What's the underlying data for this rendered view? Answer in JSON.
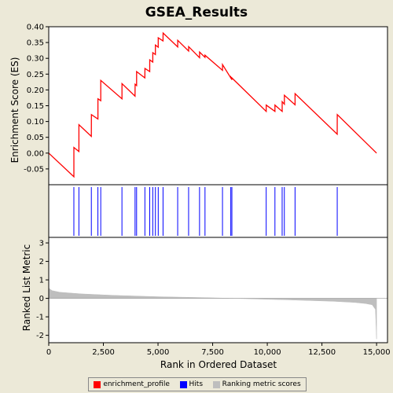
{
  "chart_data": {
    "type": "line",
    "title": "GSEA_Results",
    "xlabel": "Rank in Ordered Dataset",
    "es_ylabel": "Enrichment Score (ES)",
    "rank_ylabel": "Ranked List Metric",
    "xlim": [
      0,
      15500
    ],
    "es_ylim": [
      -0.1,
      0.4
    ],
    "rank_ylim": [
      -2.4,
      3.3
    ],
    "x_ticks": [
      0,
      2500,
      5000,
      7500,
      10000,
      12500,
      15000
    ],
    "x_tick_labels": [
      "0",
      "2,500",
      "5,000",
      "7,500",
      "10,000",
      "12,500",
      "15,000"
    ],
    "es_ticks": [
      -0.05,
      0,
      0.05,
      0.1,
      0.15,
      0.2,
      0.25,
      0.3,
      0.35,
      0.4
    ],
    "es_tick_labels": [
      "-0.05",
      "0.00",
      "0.05",
      "0.10",
      "0.15",
      "0.20",
      "0.25",
      "0.30",
      "0.35",
      "0.40"
    ],
    "rank_ticks": [
      -2,
      -1,
      0,
      1,
      2,
      3
    ],
    "rank_tick_labels": [
      "-2",
      "-1",
      "0",
      "1",
      "2",
      "3"
    ],
    "hits": [
      1150,
      1380,
      1950,
      2250,
      2380,
      3350,
      3950,
      4020,
      4400,
      4620,
      4760,
      4880,
      5010,
      5230,
      5900,
      6400,
      6900,
      7150,
      7950,
      8330,
      8380,
      9950,
      10350,
      10680,
      10780,
      11270,
      13200
    ],
    "enrichment_profile": {
      "x": [
        0,
        1150,
        1151,
        1380,
        1381,
        1950,
        1951,
        2250,
        2251,
        2380,
        2381,
        3350,
        3351,
        3950,
        3951,
        4020,
        4021,
        4400,
        4401,
        4620,
        4621,
        4760,
        4761,
        4880,
        4881,
        5010,
        5011,
        5230,
        5231,
        5900,
        5901,
        6400,
        6401,
        6900,
        6901,
        7150,
        7151,
        7950,
        7951,
        8330,
        8331,
        8380,
        8381,
        9950,
        9951,
        10350,
        10351,
        10680,
        10681,
        10780,
        10781,
        11270,
        11271,
        13200,
        13201,
        15000
      ],
      "y": [
        0.0,
        -0.075,
        0.018,
        0.005,
        0.09,
        0.053,
        0.122,
        0.108,
        0.172,
        0.166,
        0.23,
        0.172,
        0.22,
        0.18,
        0.218,
        0.214,
        0.258,
        0.238,
        0.268,
        0.258,
        0.295,
        0.288,
        0.318,
        0.312,
        0.342,
        0.335,
        0.365,
        0.355,
        0.38,
        0.336,
        0.357,
        0.323,
        0.337,
        0.302,
        0.32,
        0.303,
        0.31,
        0.262,
        0.28,
        0.238,
        0.24,
        0.232,
        0.238,
        0.132,
        0.152,
        0.132,
        0.152,
        0.132,
        0.163,
        0.155,
        0.183,
        0.153,
        0.188,
        0.06,
        0.122,
        0.0
      ]
    },
    "ranking_metric": {
      "x": [
        0,
        150,
        500,
        1500,
        3000,
        5000,
        7000,
        8000,
        9000,
        10000,
        11000,
        12000,
        13000,
        14000,
        14500,
        14800,
        14950,
        15000
      ],
      "y": [
        0.55,
        0.42,
        0.33,
        0.24,
        0.16,
        0.09,
        0.04,
        0.01,
        -0.02,
        -0.05,
        -0.08,
        -0.12,
        -0.16,
        -0.22,
        -0.28,
        -0.35,
        -0.6,
        -2.2
      ]
    },
    "legend": [
      {
        "label": "enrichment_profile",
        "color": "#ff0000"
      },
      {
        "label": "Hits",
        "color": "#0000ff"
      },
      {
        "label": "Ranking metric scores",
        "color": "#bebebe"
      }
    ]
  }
}
